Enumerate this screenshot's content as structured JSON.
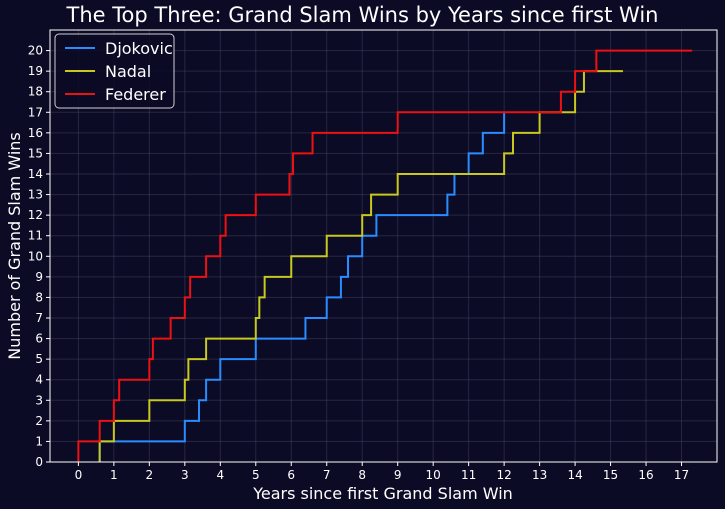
{
  "chart_data": {
    "type": "line",
    "step": true,
    "title": "The Top Three: Grand Slam Wins by Years since first Win",
    "xlabel": "Years since first Grand Slam Win",
    "ylabel": "Number of Grand Slam Wins",
    "xlim": [
      -0.8,
      18.0
    ],
    "ylim": [
      0,
      21
    ],
    "xticks": [
      0,
      1,
      2,
      3,
      4,
      5,
      6,
      7,
      8,
      9,
      10,
      11,
      12,
      13,
      14,
      15,
      16,
      17
    ],
    "yticks": [
      0,
      1,
      2,
      3,
      4,
      5,
      6,
      7,
      8,
      9,
      10,
      11,
      12,
      13,
      14,
      15,
      16,
      17,
      18,
      19,
      20
    ],
    "grid": true,
    "legend_position": "top-left",
    "background": "#0b0b26",
    "series": [
      {
        "name": "Djokovic",
        "color": "#2a8cff",
        "x": [
          0.6,
          3.0,
          3.4,
          3.6,
          4.0,
          5.0,
          6.4,
          7.0,
          7.4,
          7.6,
          8.0,
          8.4,
          10.4,
          10.6,
          11.0,
          11.4,
          12.0
        ],
        "y": [
          1,
          2,
          3,
          4,
          5,
          6,
          7,
          8,
          9,
          10,
          11,
          12,
          13,
          14,
          15,
          16,
          17
        ]
      },
      {
        "name": "Nadal",
        "color": "#c8c81e",
        "x": [
          0.6,
          1.0,
          2.0,
          3.0,
          3.1,
          3.6,
          5.0,
          5.1,
          5.25,
          6.0,
          7.0,
          8.0,
          8.25,
          9.0,
          12.0,
          12.25,
          13.0,
          14.0,
          14.25,
          15.35
        ],
        "y": [
          1,
          2,
          3,
          4,
          5,
          6,
          7,
          8,
          9,
          10,
          11,
          12,
          13,
          14,
          15,
          16,
          17,
          18,
          19,
          19
        ]
      },
      {
        "name": "Federer",
        "color": "#ee1111",
        "x": [
          0.0,
          0.6,
          1.0,
          1.15,
          2.0,
          2.1,
          2.6,
          3.0,
          3.15,
          3.6,
          4.0,
          4.15,
          5.0,
          5.95,
          6.05,
          6.6,
          9.0,
          13.6,
          14.0,
          14.6,
          17.3
        ],
        "y": [
          1,
          2,
          3,
          4,
          5,
          6,
          7,
          8,
          9,
          10,
          11,
          12,
          13,
          14,
          15,
          16,
          17,
          18,
          19,
          20,
          20
        ]
      }
    ]
  }
}
